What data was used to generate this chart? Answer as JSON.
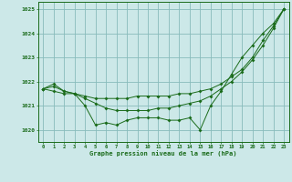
{
  "background_color": "#cce8e8",
  "grid_color": "#88bbbb",
  "line_color": "#1a6b1a",
  "xlabel": "Graphe pression niveau de la mer (hPa)",
  "xlim": [
    -0.5,
    23.5
  ],
  "ylim": [
    1019.5,
    1025.3
  ],
  "yticks": [
    1020,
    1021,
    1022,
    1023,
    1024,
    1025
  ],
  "xticks": [
    0,
    1,
    2,
    3,
    4,
    5,
    6,
    7,
    8,
    9,
    10,
    11,
    12,
    13,
    14,
    15,
    16,
    17,
    18,
    19,
    20,
    21,
    22,
    23
  ],
  "series": {
    "s1": [
      1021.7,
      1021.9,
      1021.6,
      1021.5,
      1021.0,
      1020.2,
      1020.3,
      1020.2,
      1020.4,
      1020.5,
      1020.5,
      1020.5,
      1020.4,
      1020.4,
      1020.5,
      1020.0,
      1021.0,
      1021.6,
      1022.3,
      1023.0,
      1023.5,
      1024.0,
      1024.4,
      1025.0
    ],
    "s2": [
      1021.7,
      1021.8,
      1021.6,
      1021.5,
      1021.3,
      1021.1,
      1020.9,
      1020.8,
      1020.8,
      1020.8,
      1020.8,
      1020.9,
      1020.9,
      1021.0,
      1021.1,
      1021.2,
      1021.4,
      1021.7,
      1022.0,
      1022.4,
      1022.9,
      1023.5,
      1024.2,
      1025.0
    ],
    "s3": [
      1021.7,
      1021.6,
      1021.5,
      1021.5,
      1021.4,
      1021.3,
      1021.3,
      1021.3,
      1021.3,
      1021.4,
      1021.4,
      1021.4,
      1021.4,
      1021.5,
      1021.5,
      1021.6,
      1021.7,
      1021.9,
      1022.2,
      1022.5,
      1023.0,
      1023.7,
      1024.3,
      1025.0
    ]
  }
}
